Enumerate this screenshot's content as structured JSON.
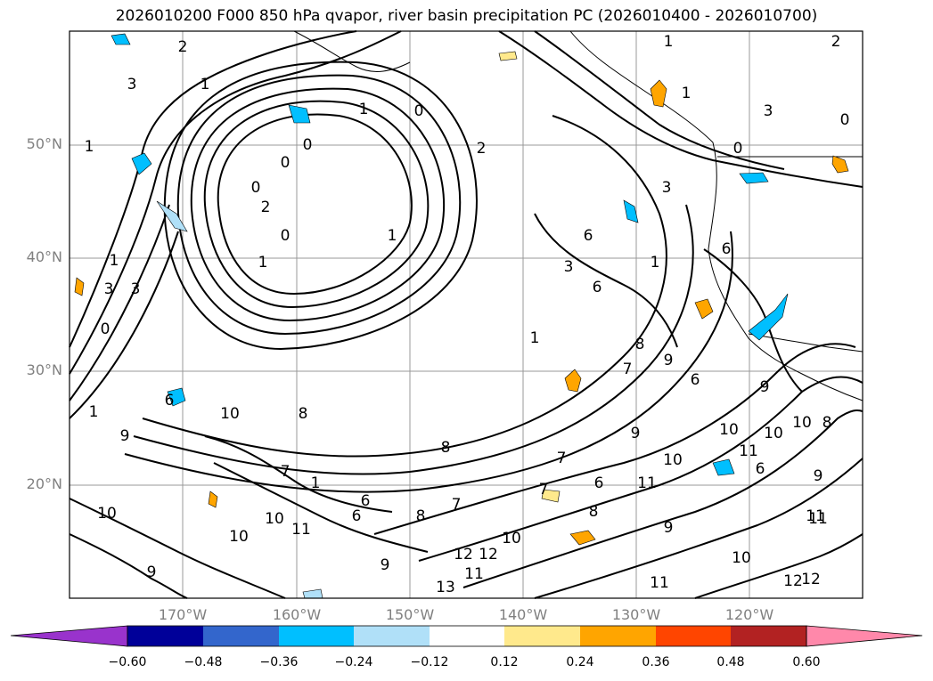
{
  "title": "2026010200 F000 850 hPa qvapor, river basin precipitation PC (2026010400 - 2026010700)",
  "map": {
    "lat_ticks": [
      "50°N",
      "40°N",
      "30°N",
      "20°N"
    ],
    "lon_ticks": [
      "170°W",
      "160°W",
      "150°W",
      "140°W",
      "130°W",
      "120°W"
    ],
    "contour_labels": [
      "2",
      "1",
      "3",
      "1",
      "0",
      "1",
      "3",
      "0",
      "0",
      "2",
      "1",
      "0",
      "1",
      "0",
      "1",
      "1",
      "3",
      "1",
      "0",
      "6",
      "3",
      "1",
      "6",
      "0",
      "1",
      "2",
      "6",
      "3",
      "2",
      "0",
      "1",
      "9",
      "6",
      "3",
      "7",
      "6",
      "1",
      "10",
      "8",
      "9",
      "8",
      "10",
      "9",
      "7",
      "11",
      "10",
      "11",
      "10",
      "11",
      "12",
      "10",
      "6",
      "9",
      "8",
      "7",
      "6",
      "9",
      "10",
      "12",
      "11",
      "10",
      "9",
      "8",
      "7",
      "6",
      "11",
      "13",
      "12",
      "11",
      "10",
      "8",
      "9",
      "10",
      "11",
      "12",
      "7",
      "6",
      "8",
      "9",
      "10"
    ],
    "colors": {
      "coast": "#000000",
      "grid": "#999999",
      "positive": "#ffa500",
      "negative": "#00bfff"
    }
  },
  "colorbar": {
    "ticks": [
      "−0.60",
      "−0.48",
      "−0.36",
      "−0.24",
      "−0.12",
      "0.12",
      "0.24",
      "0.36",
      "0.48",
      "0.60"
    ],
    "colors": [
      "#9933cc",
      "#000099",
      "#3366cc",
      "#00bfff",
      "#b0e0f8",
      "#ffffff",
      "#ffe98c",
      "#ffa500",
      "#ff4500",
      "#b22222",
      "#ff88aa"
    ]
  }
}
